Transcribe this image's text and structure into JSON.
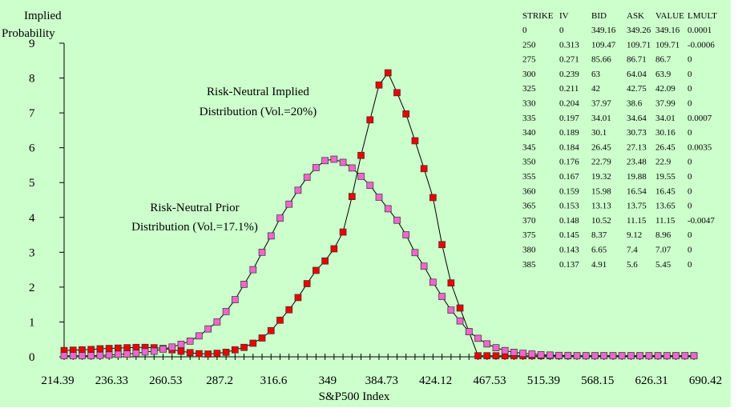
{
  "chart_data": {
    "type": "scatter",
    "title": "",
    "ylabel_lines": [
      "Implied",
      "Probability"
    ],
    "xlabel": "S&P500 Index",
    "ylim": [
      0,
      9
    ],
    "y_ticks": [
      "0",
      "1",
      "2",
      "3",
      "4",
      "5",
      "6",
      "7",
      "8",
      "9"
    ],
    "x_tick_labels": [
      "214.39",
      "236.33",
      "260.53",
      "287.2",
      "316.6",
      "349",
      "384.73",
      "424.12",
      "467.53",
      "515.39",
      "568.15",
      "626.31",
      "690.42"
    ],
    "x_point_count": 71,
    "annotations": [
      {
        "lines": [
          "Risk-Neutral Implied",
          "Distribution (Vol.=20%)"
        ]
      },
      {
        "lines": [
          "Risk-Neutral Prior",
          "Distribution (Vol.=17.1%)"
        ]
      }
    ],
    "series": [
      {
        "marker_color": "#ee0000",
        "values": [
          0.18,
          0.19,
          0.2,
          0.21,
          0.23,
          0.24,
          0.25,
          0.26,
          0.27,
          0.27,
          0.26,
          0.24,
          0.2,
          0.16,
          0.12,
          0.09,
          0.08,
          0.1,
          0.13,
          0.2,
          0.27,
          0.39,
          0.54,
          0.75,
          1.05,
          1.35,
          1.7,
          2.1,
          2.48,
          2.75,
          3.1,
          3.58,
          4.6,
          5.78,
          6.8,
          7.8,
          8.15,
          7.58,
          6.97,
          6.2,
          5.4,
          4.57,
          3.22,
          2.12,
          1.4,
          0.72,
          0.03,
          0.03,
          0.03,
          0.03,
          0.03,
          0.03,
          0.03,
          0.03,
          0.03,
          0.03,
          0.03,
          0.03,
          0.03,
          0.03,
          0.03,
          0.03,
          0.03,
          0.03,
          0.03,
          0.03,
          0.03,
          0.03,
          0.03,
          0.03,
          0.03
        ]
      },
      {
        "marker_color": "#ee66cc",
        "values": [
          0.03,
          0.03,
          0.03,
          0.03,
          0.04,
          0.05,
          0.07,
          0.08,
          0.1,
          0.14,
          0.16,
          0.22,
          0.28,
          0.36,
          0.45,
          0.6,
          0.8,
          1.0,
          1.3,
          1.64,
          2.08,
          2.5,
          3.0,
          3.47,
          3.98,
          4.38,
          4.78,
          5.15,
          5.43,
          5.63,
          5.67,
          5.58,
          5.42,
          5.18,
          4.92,
          4.58,
          4.25,
          3.92,
          3.5,
          2.99,
          2.6,
          2.14,
          1.73,
          1.34,
          1.03,
          0.72,
          0.53,
          0.37,
          0.26,
          0.18,
          0.13,
          0.1,
          0.08,
          0.06,
          0.05,
          0.04,
          0.04,
          0.03,
          0.03,
          0.03,
          0.03,
          0.03,
          0.03,
          0.03,
          0.03,
          0.03,
          0.03,
          0.03,
          0.03,
          0.03,
          0.03
        ]
      }
    ]
  },
  "table": {
    "headers": [
      "STRIKE",
      "IV",
      "BID",
      "ASK",
      "VALUE",
      "LMULT"
    ],
    "rows": [
      [
        "0",
        "0",
        "349.16",
        "349.26",
        "349.16",
        "0.0001"
      ],
      [
        "250",
        "0.313",
        "109.47",
        "109.71",
        "109.71",
        "-0.0006"
      ],
      [
        "275",
        "0.271",
        "85.66",
        "86.71",
        "86.7",
        "0"
      ],
      [
        "300",
        "0.239",
        "63",
        "64.04",
        "63.9",
        "0"
      ],
      [
        "325",
        "0.211",
        "42",
        "42.75",
        "42.09",
        "0"
      ],
      [
        "330",
        "0.204",
        "37.97",
        "38.6",
        "37.99",
        "0"
      ],
      [
        "335",
        "0.197",
        "34.01",
        "34.64",
        "34.01",
        "0.0007"
      ],
      [
        "340",
        "0.189",
        "30.1",
        "30.73",
        "30.16",
        "0"
      ],
      [
        "345",
        "0.184",
        "26.45",
        "27.13",
        "26.45",
        "0.0035"
      ],
      [
        "350",
        "0.176",
        "22.79",
        "23.48",
        "22.9",
        "0"
      ],
      [
        "355",
        "0.167",
        "19.32",
        "19.88",
        "19.55",
        "0"
      ],
      [
        "360",
        "0.159",
        "15.98",
        "16.54",
        "16.45",
        "0"
      ],
      [
        "365",
        "0.153",
        "13.13",
        "13.75",
        "13.65",
        "0"
      ],
      [
        "370",
        "0.148",
        "10.52",
        "11.15",
        "11.15",
        "-0.0047"
      ],
      [
        "375",
        "0.145",
        "8.37",
        "9.12",
        "8.96",
        "0"
      ],
      [
        "380",
        "0.143",
        "6.65",
        "7.4",
        "7.07",
        "0"
      ],
      [
        "385",
        "0.137",
        "4.91",
        "5.6",
        "5.45",
        "0"
      ]
    ]
  }
}
